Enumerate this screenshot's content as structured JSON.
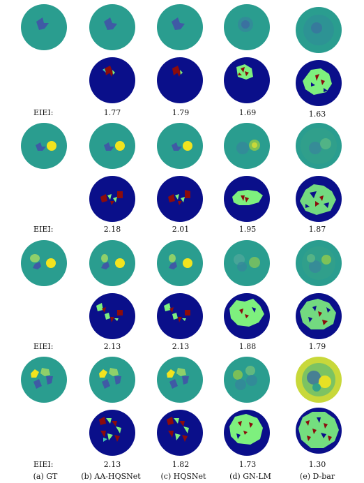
{
  "row_label": "EIEI:",
  "captions": [
    "(a) GT",
    "(b) AA-HQSNet",
    "(c) HQSNet",
    "(d) GN-LM",
    "(e) D-bar"
  ],
  "scores": [
    [
      "1.77",
      "1.79",
      "1.69",
      "1.63"
    ],
    [
      "2.18",
      "2.01",
      "1.95",
      "1.87"
    ],
    [
      "2.13",
      "2.13",
      "1.88",
      "1.79"
    ],
    [
      "2.13",
      "1.82",
      "1.73",
      "1.30"
    ]
  ],
  "colors": {
    "background_disk": "#2a9d8f",
    "inclusion_dark": "#3f5aa5",
    "inclusion_bright": "#f2e41e",
    "inclusion_light": "#5fd07a",
    "error_disk": "#0a0f8a",
    "error_true": "#8b0c0c",
    "error_false": "#7ef07e",
    "error_mid": "#42c8b0"
  }
}
